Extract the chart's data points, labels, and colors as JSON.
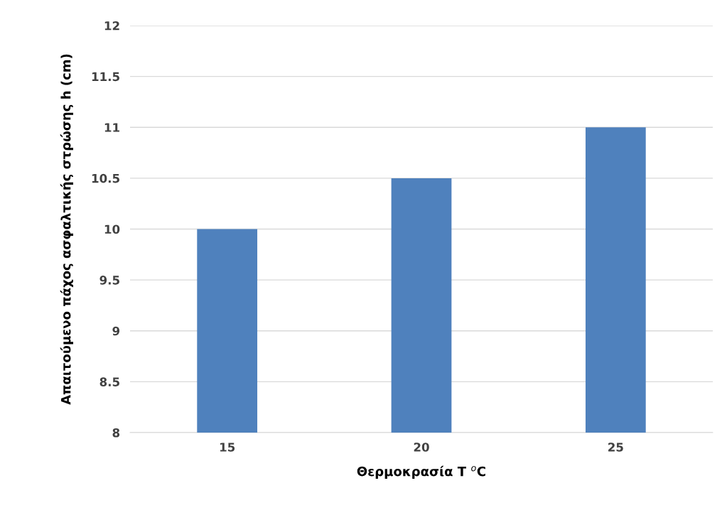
{
  "chart_data": {
    "type": "bar",
    "xlabel": "Θερμοκρασία T $^{o}$C",
    "ylabel": "Απαιτούμενο πάχος ασφαλτικής στρώσης h (cm)",
    "categories": [
      "15",
      "20",
      "25"
    ],
    "values": [
      10,
      10.5,
      11
    ],
    "color": "#4f81bd",
    "ylim": [
      8,
      12
    ],
    "yticks": [
      8,
      8.5,
      9,
      9.5,
      10,
      10.5,
      11,
      11.5,
      12
    ],
    "grid": "y"
  }
}
